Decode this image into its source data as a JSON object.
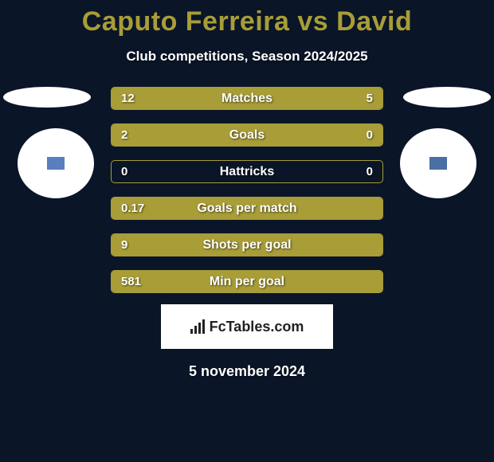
{
  "title": "Caputo Ferreira vs David",
  "subtitle": "Club competitions, Season 2024/2025",
  "date": "5 november 2024",
  "logo_text": "FcTables.com",
  "colors": {
    "accent": "#a89d37",
    "background": "#0a1528",
    "panel": "#ffffff"
  },
  "bars": [
    {
      "label": "Matches",
      "left": "12",
      "right": "5",
      "left_pct": 68,
      "right_pct": 32
    },
    {
      "label": "Goals",
      "left": "2",
      "right": "0",
      "left_pct": 76,
      "right_pct": 24
    },
    {
      "label": "Hattricks",
      "left": "0",
      "right": "0",
      "left_pct": 0,
      "right_pct": 0
    },
    {
      "label": "Goals per match",
      "left": "0.17",
      "right": "",
      "left_pct": 100,
      "right_pct": 0
    },
    {
      "label": "Shots per goal",
      "left": "9",
      "right": "",
      "left_pct": 100,
      "right_pct": 0
    },
    {
      "label": "Min per goal",
      "left": "581",
      "right": "",
      "left_pct": 100,
      "right_pct": 0
    }
  ]
}
